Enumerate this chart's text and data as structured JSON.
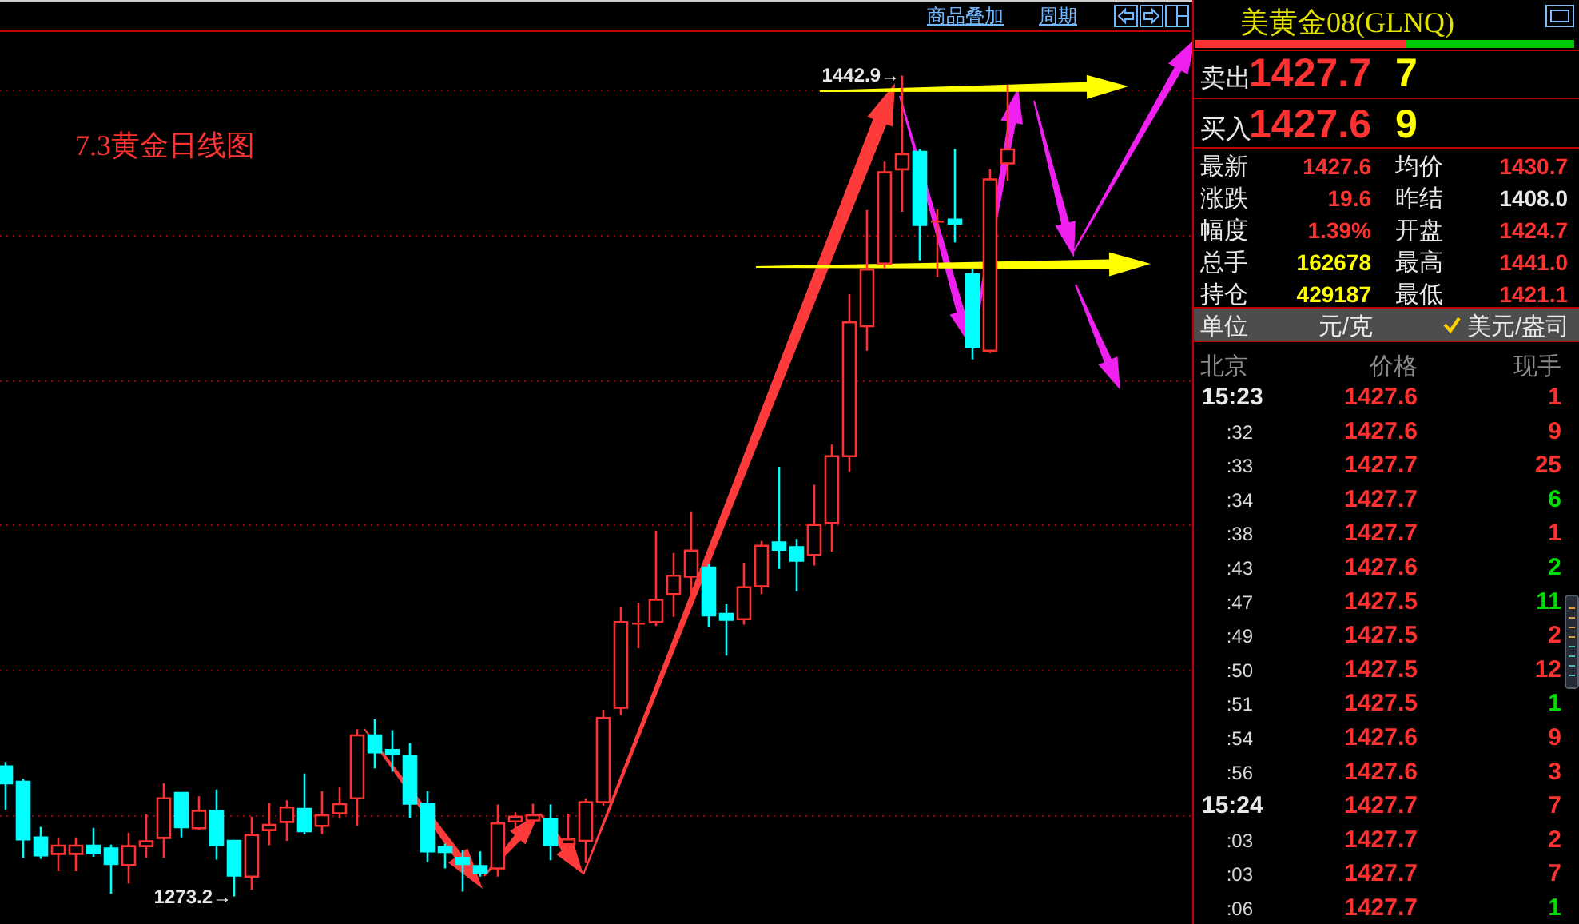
{
  "chart_data": [
    {
      "type": "candlestick",
      "title": "7.3黄金日线图",
      "categories": [
        null,
        null,
        null,
        null,
        null,
        null,
        null,
        null,
        null,
        null,
        null,
        null,
        null,
        null,
        null,
        null,
        null,
        null,
        null,
        null,
        null,
        null,
        null,
        null,
        null,
        null,
        null,
        null,
        null,
        null,
        null,
        null,
        null,
        null,
        null,
        null,
        null,
        null,
        null,
        null,
        null,
        null,
        null,
        null,
        null,
        null,
        null,
        null,
        null,
        null,
        null,
        null,
        null,
        null,
        null,
        null,
        null,
        null
      ],
      "ohlc": [
        [
          1300.1,
          1301.0,
          1291.1,
          1296.6
        ],
        [
          1296.9,
          1297.5,
          1281.2,
          1285.0
        ],
        [
          1285.4,
          1287.6,
          1281.0,
          1281.7
        ],
        [
          1282.0,
          1285.4,
          1278.4,
          1283.7
        ],
        [
          1282.0,
          1285.4,
          1278.4,
          1283.7
        ],
        [
          1283.7,
          1287.4,
          1281.4,
          1282.1
        ],
        [
          1283.1,
          1283.9,
          1273.8,
          1279.9
        ],
        [
          1279.7,
          1286.4,
          1275.9,
          1283.6
        ],
        [
          1283.6,
          1290.2,
          1281.2,
          1284.6
        ],
        [
          1285.3,
          1296.6,
          1281.2,
          1293.5
        ],
        [
          1294.6,
          1294.6,
          1285.4,
          1287.5
        ],
        [
          1287.3,
          1293.9,
          1287.0,
          1290.9
        ],
        [
          1290.9,
          1295.3,
          1280.8,
          1283.8
        ],
        [
          1284.7,
          1284.7,
          1273.2,
          1277.5
        ],
        [
          1277.3,
          1289.7,
          1274.6,
          1285.9
        ],
        [
          1286.9,
          1292.5,
          1283.8,
          1288.0
        ],
        [
          1288.6,
          1293.1,
          1284.7,
          1291.6
        ],
        [
          1291.3,
          1298.6,
          1286.0,
          1286.7
        ],
        [
          1287.8,
          1295.0,
          1286.1,
          1290.0
        ],
        [
          1290.4,
          1295.9,
          1289.3,
          1292.3
        ],
        [
          1293.5,
          1307.8,
          1287.8,
          1306.5
        ],
        [
          1306.5,
          1309.8,
          1299.7,
          1303.0
        ],
        [
          1303.5,
          1307.6,
          1299.0,
          1302.7
        ],
        [
          1302.3,
          1304.9,
          1289.4,
          1292.4
        ],
        [
          1292.4,
          1295.0,
          1280.3,
          1282.5
        ],
        [
          1283.4,
          1284.1,
          1279.0,
          1282.4
        ],
        [
          1281.2,
          1282.7,
          1274.2,
          1279.9
        ],
        [
          1279.5,
          1282.5,
          1277.3,
          1278.1
        ],
        [
          1279.0,
          1292.2,
          1277.3,
          1288.3
        ],
        [
          1288.7,
          1290.6,
          1286.7,
          1289.7
        ],
        [
          1288.9,
          1292.4,
          1288.0,
          1290.0
        ],
        [
          1289.1,
          1292.2,
          1280.7,
          1283.8
        ],
        [
          1284.0,
          1290.3,
          1283.1,
          1285.0
        ],
        [
          1284.7,
          1293.5,
          1280.1,
          1292.7
        ],
        [
          1292.7,
          1311.8,
          1292.0,
          1310.1
        ],
        [
          1312.2,
          1333.0,
          1310.7,
          1329.9
        ],
        [
          1329.6,
          1333.9,
          1324.5,
          1329.6
        ],
        [
          1329.9,
          1348.8,
          1329.1,
          1334.5
        ],
        [
          1335.7,
          1344.2,
          1331.0,
          1339.5
        ],
        [
          1339.3,
          1352.8,
          1333.9,
          1344.7
        ],
        [
          1341.2,
          1341.9,
          1328.8,
          1331.3
        ],
        [
          1331.6,
          1333.6,
          1323.0,
          1330.4
        ],
        [
          1330.5,
          1342.2,
          1329.4,
          1337.1
        ],
        [
          1337.3,
          1346.7,
          1335.7,
          1345.7
        ],
        [
          1346.4,
          1362.0,
          1340.9,
          1344.9
        ],
        [
          1345.4,
          1347.1,
          1336.3,
          1342.6
        ],
        [
          1343.8,
          1358.3,
          1341.6,
          1350.0
        ],
        [
          1350.4,
          1366.6,
          1344.5,
          1364.2
        ],
        [
          1364.2,
          1397.7,
          1361.0,
          1391.9
        ],
        [
          1391.1,
          1415.1,
          1386.0,
          1402.8
        ],
        [
          1404.0,
          1425.1,
          1403.0,
          1422.9
        ],
        [
          1423.5,
          1442.9,
          1414.7,
          1426.6
        ],
        [
          1427.1,
          1427.7,
          1404.7,
          1412.0
        ],
        [
          1412.7,
          1415.2,
          1401.2,
          1412.7
        ],
        [
          1413.1,
          1427.7,
          1408.4,
          1412.3
        ],
        [
          1401.8,
          1403.0,
          1384.2,
          1386.7
        ],
        [
          1386.0,
          1423.5,
          1385.5,
          1421.4
        ],
        [
          1424.7,
          1441.0,
          1421.1,
          1427.6
        ]
      ],
      "colors": [
        "#00ffff",
        "#00ffff",
        "#00ffff",
        "#ff3232",
        "#ff3232",
        "#00ffff",
        "#00ffff",
        "#ff3232",
        "#ff3232",
        "#ff3232",
        "#00ffff",
        "#ff3232",
        "#00ffff",
        "#00ffff",
        "#ff3232",
        "#ff3232",
        "#ff3232",
        "#00ffff",
        "#ff3232",
        "#ff3232",
        "#ff3232",
        "#00ffff",
        "#00ffff",
        "#00ffff",
        "#00ffff",
        "#00ffff",
        "#00ffff",
        "#00ffff",
        "#ff3232",
        "#ff3232",
        "#ff3232",
        "#00ffff",
        "#ff3232",
        "#ff3232",
        "#ff3232",
        "#ff3232",
        "#ff3232",
        "#ff3232",
        "#ff3232",
        "#ff3232",
        "#00ffff",
        "#00ffff",
        "#ff3232",
        "#ff3232",
        "#00ffff",
        "#00ffff",
        "#ff3232",
        "#ff3232",
        "#ff3232",
        "#ff3232",
        "#ff3232",
        "#ff3232",
        "#00ffff",
        "#ff3232",
        "#00ffff",
        "#00ffff",
        "#ff3232",
        "#ff3232"
      ],
      "yticks": [
        {
          "value": 1290,
          "label": null
        },
        {
          "value": 1320,
          "label": null
        },
        {
          "value": 1350,
          "label": null
        },
        {
          "value": 1380,
          "label": null
        },
        {
          "value": 1410,
          "label": null
        },
        {
          "value": 1440,
          "label": null
        }
      ],
      "grid": "y",
      "annotations": [
        "1442.9→",
        "1273.2→",
        "商品叠加",
        "周期"
      ]
    },
    {
      "type": "other",
      "title": "美黄金08(GLNQ)",
      "annotations": [
        "卖出",
        "1427.7",
        "7",
        "买入",
        "1427.6",
        "9",
        "最新",
        "1427.6",
        "均价",
        "1430.7",
        "涨跌",
        "19.6",
        "昨结",
        "1408.0",
        "幅度",
        "1.39%",
        "开盘",
        "1424.7",
        "总手",
        "162678",
        "最高",
        "1441.0",
        "持仓",
        "429187",
        "最低",
        "1421.1",
        "单位",
        "元/克",
        "美元/盎司",
        "北京",
        "价格",
        "现手",
        "15:23",
        "1427.6",
        "1",
        ":32",
        "1427.6",
        "9",
        ":33",
        "1427.7",
        "25",
        ":34",
        "1427.7",
        "6",
        ":38",
        "1427.7",
        "1",
        ":43",
        "1427.6",
        "2",
        ":47",
        "1427.5",
        "11",
        ":49",
        "1427.5",
        "2",
        ":50",
        "1427.5",
        "12",
        ":51",
        "1427.5",
        "1",
        ":54",
        "1427.6",
        "9",
        ":56",
        "1427.6",
        "3",
        "15:24",
        "1427.7",
        "7",
        ":03",
        "1427.7",
        "2",
        ":03",
        "1427.7",
        "7",
        ":06",
        "1427.7",
        "1"
      ]
    }
  ]
}
